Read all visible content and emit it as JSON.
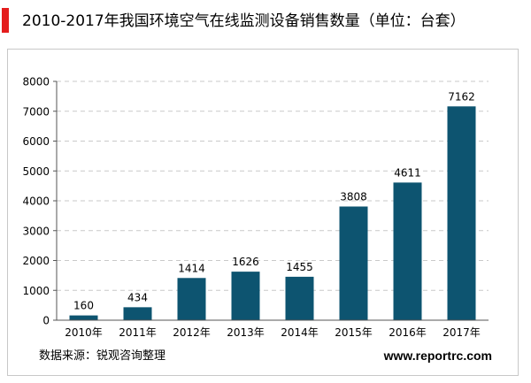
{
  "title": "2010-2017年我国环境空气在线监测设备销售数量（单位：台套）",
  "source": "数据来源：锐观咨询整理",
  "website": "www.reportrc.com",
  "colors": {
    "accent": "#e41d1d",
    "bar": "#0d5470",
    "grid": "#c9c9c9",
    "axis": "#555555"
  },
  "chart_data": {
    "type": "bar",
    "title": "2010-2017年我国环境空气在线监测设备销售数量（单位：台套）",
    "categories": [
      "2010年",
      "2011年",
      "2012年",
      "2013年",
      "2014年",
      "2015年",
      "2016年",
      "2017年"
    ],
    "values": [
      160,
      434,
      1414,
      1626,
      1455,
      3808,
      4611,
      7162
    ],
    "ylim": [
      0,
      8000
    ],
    "yticks": [
      0,
      1000,
      2000,
      3000,
      4000,
      5000,
      6000,
      7000,
      8000
    ],
    "grid": "dashed-horizontal",
    "legend": "none",
    "data_labels": true
  }
}
